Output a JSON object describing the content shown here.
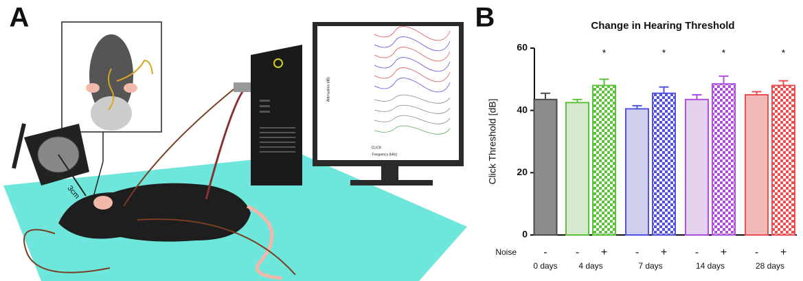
{
  "panel_labels": [
    "A",
    "B"
  ],
  "illustration": {
    "distance_label": "3cm",
    "monitor_y_label": "Attenuation (dB)",
    "monitor_x_label": "Frequency (kHz)",
    "monitor_stimulus": "CLICK"
  },
  "chart_data": {
    "type": "bar",
    "title": "Change in Hearing Threshold",
    "y_label": "Click Threshold [dB]",
    "row_label": "Noise",
    "categories": [
      "-",
      "-",
      "+",
      "-",
      "+",
      "-",
      "+",
      "-",
      "+"
    ],
    "groups": [
      "0 days",
      "4 days",
      "7 days",
      "14 days",
      "28 days"
    ],
    "group_sizes": [
      1,
      2,
      2,
      2,
      2
    ],
    "values": [
      43.5,
      42.5,
      48,
      40.5,
      45.5,
      43.5,
      48.5,
      45,
      48
    ],
    "errors": [
      2,
      1,
      2,
      1,
      2,
      1.5,
      2.5,
      1,
      1.5
    ],
    "colors": [
      "#4a4a4a",
      "#5cc23a",
      "#5cc23a",
      "#5252e0",
      "#5252e0",
      "#b04fe0",
      "#b04fe0",
      "#ec4f4f",
      "#ec4f4f"
    ],
    "fills": [
      "#8c8c8c",
      "#d6ebcd",
      "#5cc23a",
      "#cfd0ee",
      "#5252e0",
      "#e4d2ee",
      "#b04fe0",
      "#f2b9b9",
      "#ec4f4f"
    ],
    "checkered": [
      false,
      false,
      true,
      false,
      true,
      false,
      true,
      false,
      true
    ],
    "significance": [
      null,
      null,
      "*",
      null,
      "*",
      null,
      "*",
      null,
      "*"
    ],
    "ylim": [
      0,
      60
    ],
    "yticks": [
      0,
      20,
      40,
      60
    ]
  }
}
